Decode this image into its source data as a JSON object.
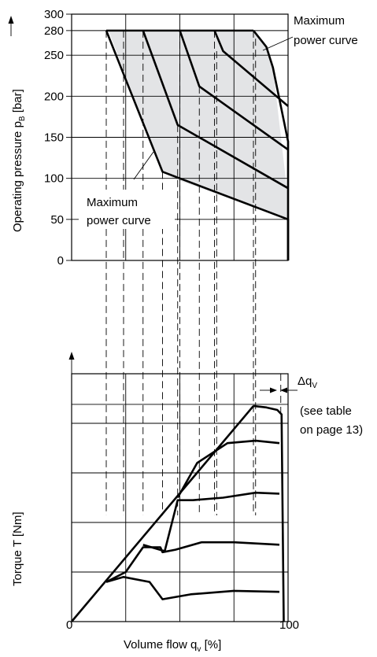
{
  "colors": {
    "shade": "#e3e4e6",
    "line": "#000000",
    "background": "#ffffff"
  },
  "chart_data": [
    {
      "type": "line",
      "title": "",
      "ylabel": "Operating pressure",
      "ylabel_symbol": "p",
      "ylabel_subscript": "B",
      "ylabel_unit": "[bar]",
      "xlabel": "",
      "ylim": [
        0,
        300
      ],
      "xlim": [
        0,
        100
      ],
      "yticks": [
        "300",
        "280",
        "250",
        "200",
        "150",
        "100",
        "50",
        "0"
      ],
      "ytick_values": [
        300,
        280,
        250,
        200,
        150,
        100,
        50,
        0
      ],
      "grid": true,
      "annotations": [
        {
          "text": [
            "Maximum",
            "power curve"
          ],
          "position": "top-right"
        },
        {
          "text": [
            "Maximum",
            "power curve"
          ],
          "position": "bottom-left"
        }
      ],
      "shaded_region": {
        "x": [
          17,
          84,
          90,
          93,
          100,
          100,
          47,
          42
        ],
        "y": [
          280,
          280,
          260,
          235,
          75,
          50,
          100,
          108
        ]
      },
      "series": [
        {
          "x": [
            16,
            42,
            100,
            100
          ],
          "y": [
            280,
            108,
            50,
            0
          ]
        },
        {
          "x": [
            33,
            49,
            100
          ],
          "y": [
            280,
            165,
            88
          ]
        },
        {
          "x": [
            50,
            59,
            100
          ],
          "y": [
            280,
            212,
            135
          ]
        },
        {
          "x": [
            66,
            70,
            100
          ],
          "y": [
            280,
            255,
            188
          ]
        },
        {
          "x": [
            84,
            90,
            93,
            100,
            100
          ],
          "y": [
            280,
            260,
            235,
            145,
            0
          ]
        }
      ],
      "guides_x": [
        16,
        24,
        33,
        42,
        49,
        50,
        59,
        66,
        67,
        84,
        85
      ]
    },
    {
      "type": "line",
      "title": "",
      "ylabel": "Torque T [Nm]",
      "xlabel": "Volume flow",
      "xlabel_symbol": "q",
      "xlabel_subscript": "v",
      "xlabel_unit": "[%]",
      "xlim": [
        0,
        100
      ],
      "xticks": [
        "0",
        "100"
      ],
      "xtick_values": [
        0,
        100
      ],
      "grid": true,
      "annotations": [
        {
          "text": [
            "Δq",
            "V"
          ],
          "position": "top-right"
        },
        {
          "text": [
            "(see table",
            "on page 13)"
          ],
          "position": "top-right"
        }
      ],
      "series": [
        {
          "x": [
            0,
            84
          ],
          "y": [
            0,
            4.35
          ]
        },
        {
          "x": [
            84,
            90,
            95,
            97,
            98
          ],
          "y": [
            4.35,
            4.32,
            4.27,
            4.18,
            0
          ]
        },
        {
          "x": [
            49,
            58,
            72,
            85,
            96
          ],
          "y": [
            2.5,
            3.2,
            3.6,
            3.65,
            3.6
          ]
        },
        {
          "x": [
            33,
            43,
            49,
            56,
            70,
            85,
            96
          ],
          "y": [
            1.55,
            1.42,
            2.45,
            2.45,
            2.5,
            2.6,
            2.58
          ]
        },
        {
          "x": [
            16,
            25,
            33,
            41,
            42,
            48,
            60,
            75,
            96
          ],
          "y": [
            0.8,
            1.0,
            1.5,
            1.5,
            1.4,
            1.45,
            1.6,
            1.6,
            1.55
          ]
        },
        {
          "x": [
            16,
            24,
            36,
            42,
            55,
            75,
            96
          ],
          "y": [
            0.8,
            0.9,
            0.8,
            0.45,
            0.55,
            0.62,
            0.6
          ]
        }
      ]
    }
  ]
}
